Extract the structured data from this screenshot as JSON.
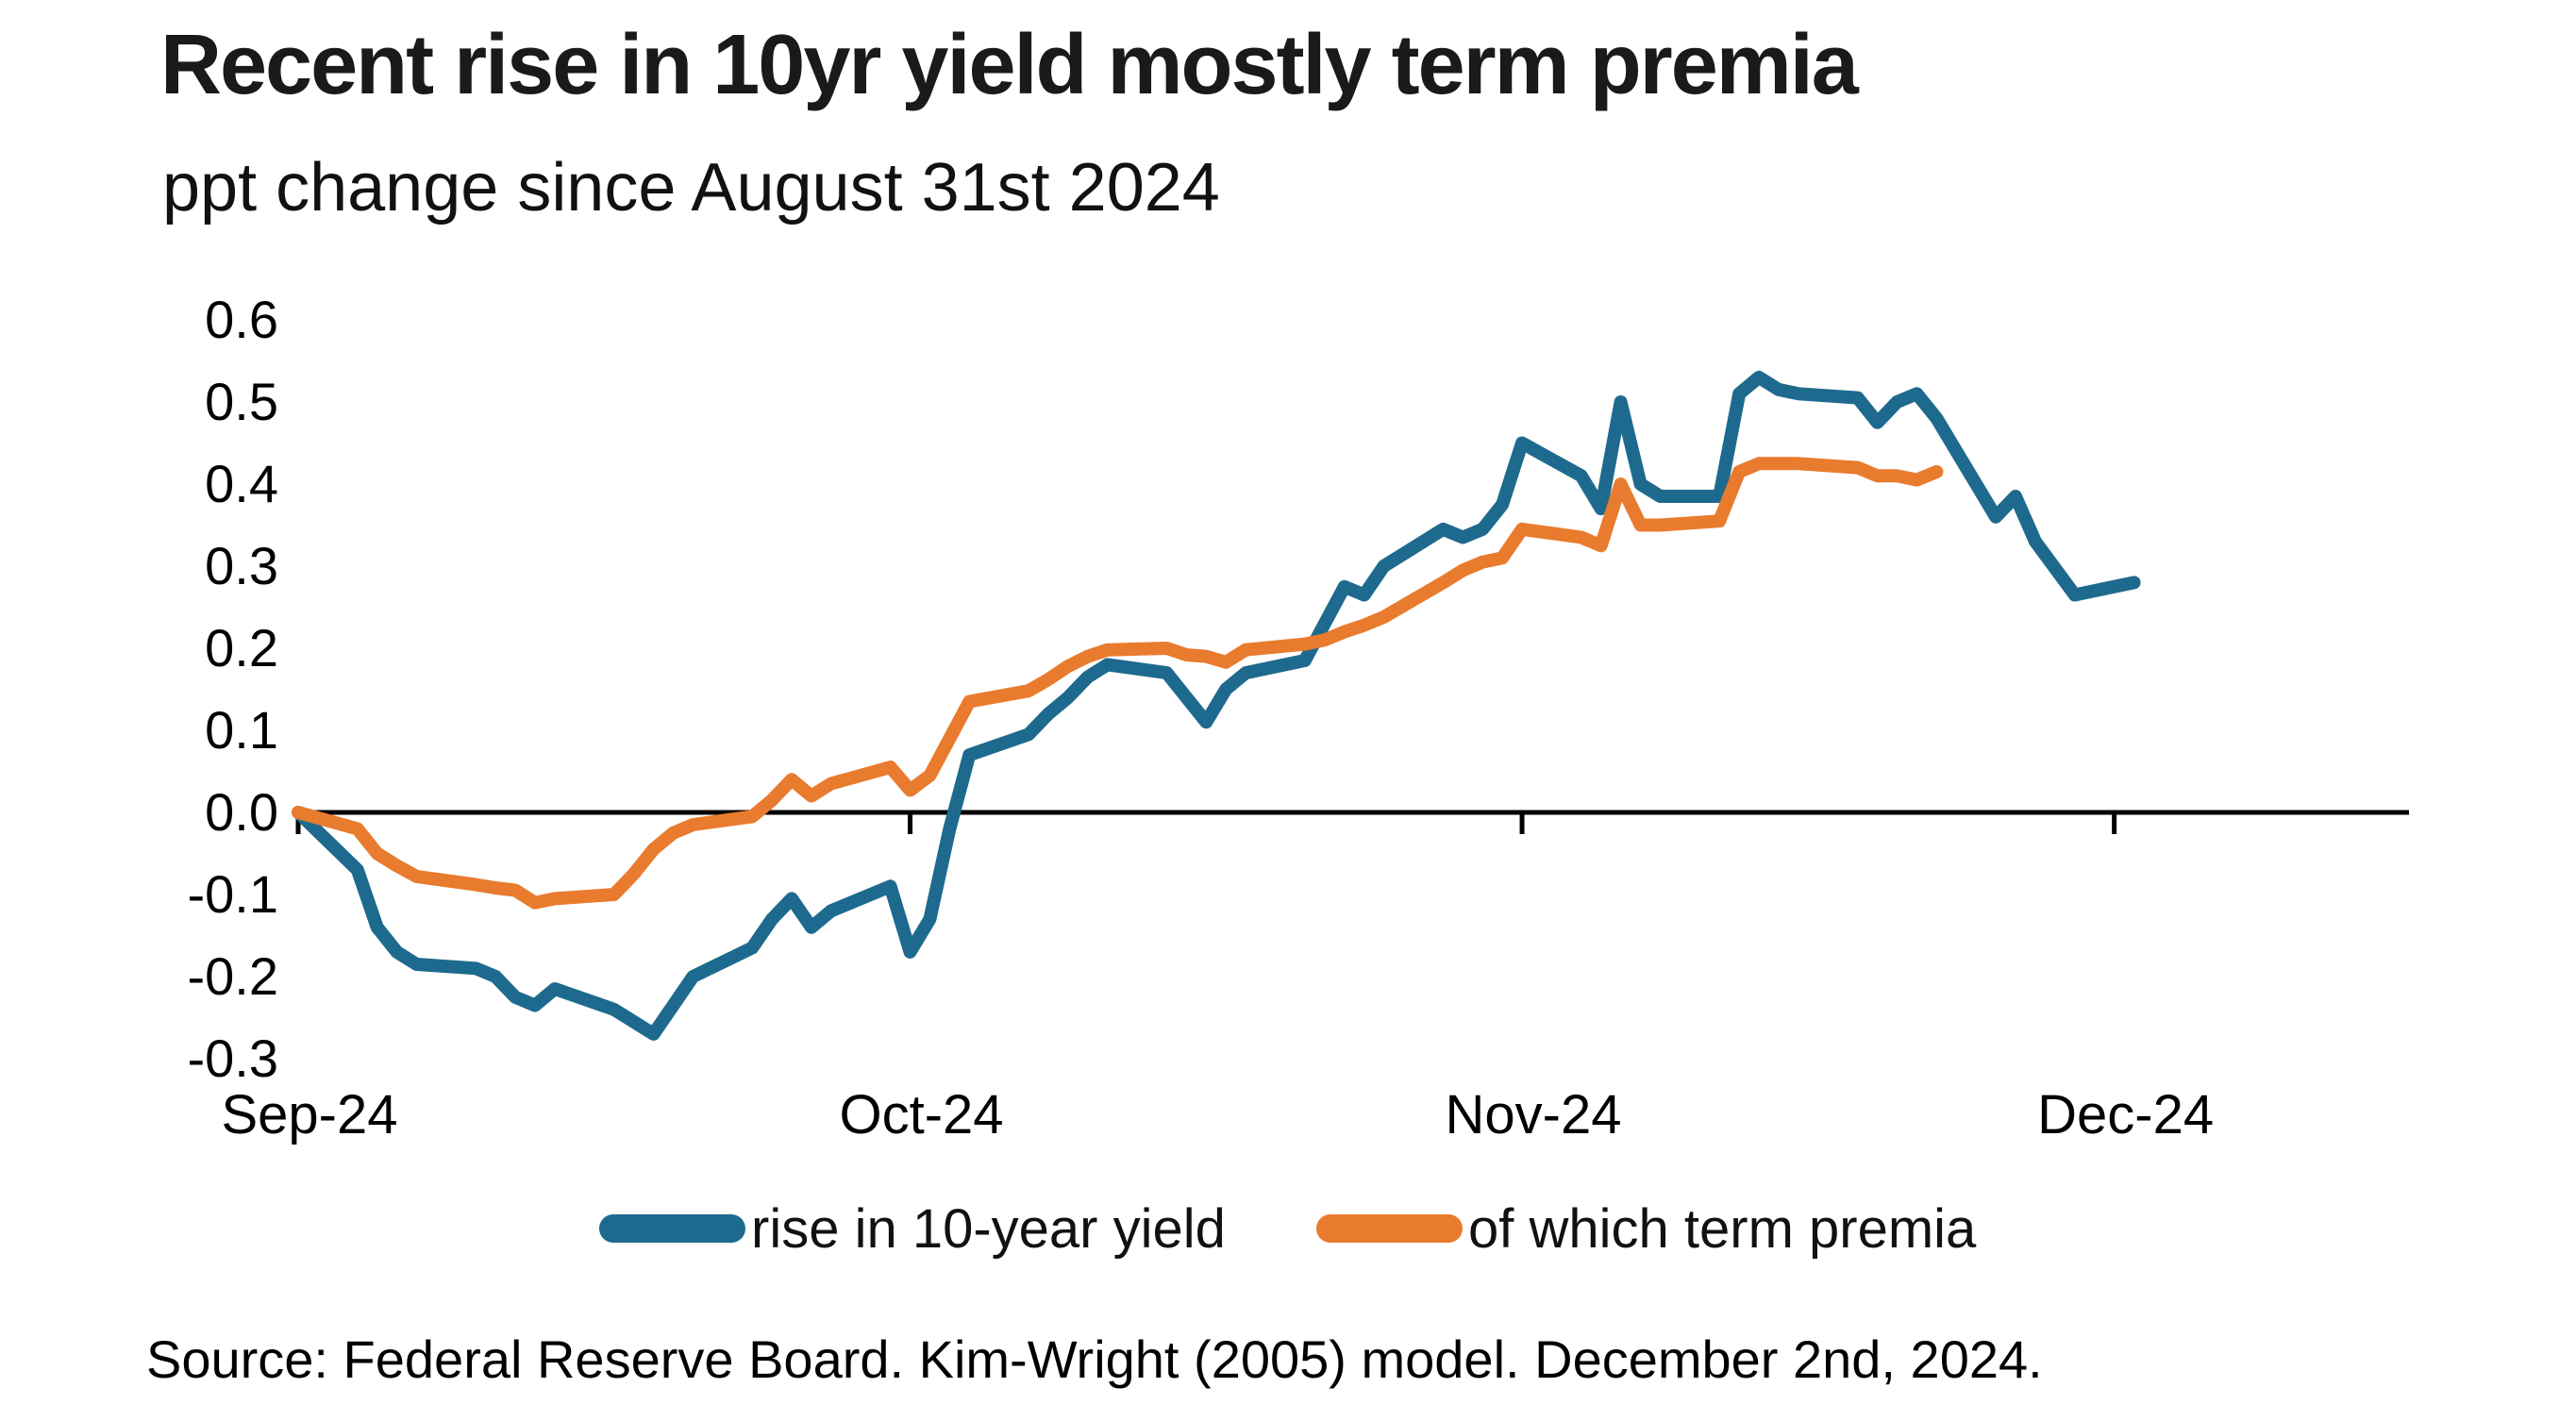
{
  "chart_data": {
    "type": "line",
    "title": "Recent rise in 10yr yield mostly term premia",
    "subtitle": "ppt change since August 31st 2024",
    "source_note": "Source: Federal Reserve Board. Kim-Wright (2005) model. December 2nd, 2024.",
    "grid": false,
    "legend_position": "bottom",
    "x_axis": {
      "unit": "date",
      "start_date": "2024-08-31",
      "end_day_offset": 93,
      "tick_labels": [
        "Sep-24",
        "Oct-24",
        "Nov-24",
        "Dec-24"
      ],
      "tick_day_offsets": [
        0,
        31,
        62,
        92
      ]
    },
    "y_axis": {
      "min": -0.35,
      "max": 0.65,
      "zero_baseline": true,
      "ticks": [
        {
          "label": "0.6",
          "value": 0.6
        },
        {
          "label": "0.5",
          "value": 0.5
        },
        {
          "label": "0.4",
          "value": 0.4
        },
        {
          "label": "0.3",
          "value": 0.3
        },
        {
          "label": "0.2",
          "value": 0.2
        },
        {
          "label": "0.1",
          "value": 0.1
        },
        {
          "label": "0.0",
          "value": 0.0
        },
        {
          "label": "-0.1",
          "value": -0.1
        },
        {
          "label": "-0.2",
          "value": -0.2
        },
        {
          "label": "-0.3",
          "value": -0.3
        }
      ]
    },
    "series": [
      {
        "name": "rise in 10-year yield",
        "color": "#1e6a8e",
        "points_day_value": [
          [
            0,
            0.0
          ],
          [
            3,
            -0.07
          ],
          [
            4,
            -0.14
          ],
          [
            5,
            -0.17
          ],
          [
            6,
            -0.185
          ],
          [
            9,
            -0.19
          ],
          [
            10,
            -0.2
          ],
          [
            11,
            -0.225
          ],
          [
            12,
            -0.235
          ],
          [
            13,
            -0.215
          ],
          [
            16,
            -0.24
          ],
          [
            17,
            -0.255
          ],
          [
            18,
            -0.27
          ],
          [
            19,
            -0.235
          ],
          [
            20,
            -0.2
          ],
          [
            23,
            -0.165
          ],
          [
            24,
            -0.13
          ],
          [
            25,
            -0.105
          ],
          [
            26,
            -0.14
          ],
          [
            27,
            -0.12
          ],
          [
            30,
            -0.09
          ],
          [
            31,
            -0.17
          ],
          [
            32,
            -0.13
          ],
          [
            33,
            -0.02
          ],
          [
            34,
            0.07
          ],
          [
            37,
            0.095
          ],
          [
            38,
            0.12
          ],
          [
            39,
            0.14
          ],
          [
            40,
            0.165
          ],
          [
            41,
            0.18
          ],
          [
            44,
            0.17
          ],
          [
            45,
            0.14
          ],
          [
            46,
            0.11
          ],
          [
            47,
            0.15
          ],
          [
            48,
            0.17
          ],
          [
            51,
            0.185
          ],
          [
            52,
            0.23
          ],
          [
            53,
            0.275
          ],
          [
            54,
            0.265
          ],
          [
            55,
            0.3
          ],
          [
            58,
            0.345
          ],
          [
            59,
            0.335
          ],
          [
            60,
            0.345
          ],
          [
            61,
            0.375
          ],
          [
            62,
            0.45
          ],
          [
            65,
            0.41
          ],
          [
            66,
            0.37
          ],
          [
            67,
            0.5
          ],
          [
            68,
            0.4
          ],
          [
            69,
            0.385
          ],
          [
            72,
            0.385
          ],
          [
            73,
            0.51
          ],
          [
            74,
            0.53
          ],
          [
            75,
            0.515
          ],
          [
            76,
            0.51
          ],
          [
            79,
            0.505
          ],
          [
            80,
            0.475
          ],
          [
            81,
            0.5
          ],
          [
            82,
            0.51
          ],
          [
            83,
            0.48
          ],
          [
            86,
            0.36
          ],
          [
            87,
            0.385
          ],
          [
            88,
            0.33
          ],
          [
            90,
            0.265
          ],
          [
            93,
            0.28
          ]
        ]
      },
      {
        "name": "of which term premia",
        "color": "#e97b2e",
        "points_day_value": [
          [
            0,
            0.0
          ],
          [
            3,
            -0.02
          ],
          [
            4,
            -0.05
          ],
          [
            5,
            -0.065
          ],
          [
            6,
            -0.078
          ],
          [
            9,
            -0.088
          ],
          [
            10,
            -0.092
          ],
          [
            11,
            -0.095
          ],
          [
            12,
            -0.11
          ],
          [
            13,
            -0.105
          ],
          [
            16,
            -0.1
          ],
          [
            17,
            -0.075
          ],
          [
            18,
            -0.045
          ],
          [
            19,
            -0.025
          ],
          [
            20,
            -0.015
          ],
          [
            23,
            -0.005
          ],
          [
            24,
            0.015
          ],
          [
            25,
            0.04
          ],
          [
            26,
            0.02
          ],
          [
            27,
            0.035
          ],
          [
            30,
            0.055
          ],
          [
            31,
            0.027
          ],
          [
            32,
            0.045
          ],
          [
            33,
            0.09
          ],
          [
            34,
            0.135
          ],
          [
            37,
            0.148
          ],
          [
            38,
            0.162
          ],
          [
            39,
            0.178
          ],
          [
            40,
            0.19
          ],
          [
            41,
            0.198
          ],
          [
            44,
            0.2
          ],
          [
            45,
            0.192
          ],
          [
            46,
            0.19
          ],
          [
            47,
            0.183
          ],
          [
            48,
            0.198
          ],
          [
            51,
            0.205
          ],
          [
            52,
            0.21
          ],
          [
            53,
            0.22
          ],
          [
            54,
            0.228
          ],
          [
            55,
            0.238
          ],
          [
            58,
            0.28
          ],
          [
            59,
            0.295
          ],
          [
            60,
            0.305
          ],
          [
            61,
            0.31
          ],
          [
            62,
            0.345
          ],
          [
            65,
            0.335
          ],
          [
            66,
            0.325
          ],
          [
            67,
            0.4
          ],
          [
            68,
            0.35
          ],
          [
            69,
            0.35
          ],
          [
            72,
            0.355
          ],
          [
            73,
            0.415
          ],
          [
            74,
            0.425
          ],
          [
            75,
            0.425
          ],
          [
            76,
            0.425
          ],
          [
            79,
            0.42
          ],
          [
            80,
            0.41
          ],
          [
            81,
            0.41
          ],
          [
            82,
            0.405
          ],
          [
            83,
            0.415
          ]
        ]
      }
    ]
  }
}
